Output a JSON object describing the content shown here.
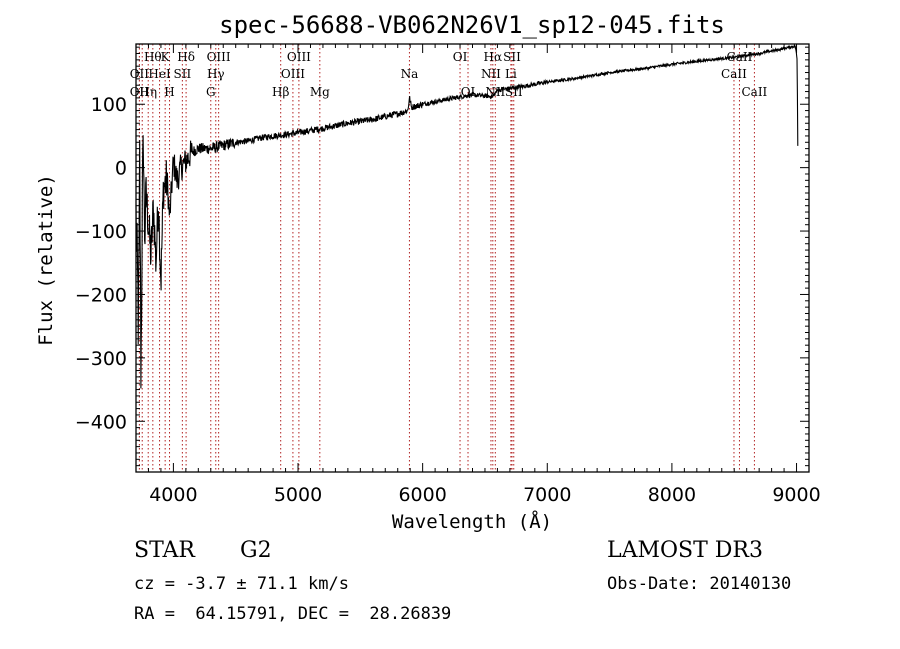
{
  "chart_data": {
    "type": "line",
    "title": "spec-56688-VB062N26V1_sp12-045.fits",
    "xlabel": "Wavelength (Å)",
    "ylabel": "Flux (relative)",
    "xlim": [
      3700,
      9100
    ],
    "ylim": [
      -480,
      195
    ],
    "xticks": [
      {
        "value": 4000,
        "label": "4000"
      },
      {
        "value": 5000,
        "label": "5000"
      },
      {
        "value": 6000,
        "label": "6000"
      },
      {
        "value": 7000,
        "label": "7000"
      },
      {
        "value": 8000,
        "label": "8000"
      },
      {
        "value": 9000,
        "label": "9000"
      }
    ],
    "yticks": [
      {
        "value": 100,
        "label": "100"
      },
      {
        "value": 0,
        "label": "0"
      },
      {
        "value": -100,
        "label": "−100"
      },
      {
        "value": -200,
        "label": "−200"
      },
      {
        "value": -300,
        "label": "−300"
      },
      {
        "value": -400,
        "label": "−400"
      }
    ],
    "spectrum_anchors": [
      {
        "x": 3700,
        "y": -80
      },
      {
        "x": 3720,
        "y": -250
      },
      {
        "x": 3730,
        "y": 10
      },
      {
        "x": 3740,
        "y": -340
      },
      {
        "x": 3750,
        "y": -60
      },
      {
        "x": 3760,
        "y": 30
      },
      {
        "x": 3770,
        "y": -120
      },
      {
        "x": 3780,
        "y": -40
      },
      {
        "x": 3800,
        "y": -90
      },
      {
        "x": 3820,
        "y": -140
      },
      {
        "x": 3840,
        "y": -60
      },
      {
        "x": 3860,
        "y": -150
      },
      {
        "x": 3880,
        "y": -50
      },
      {
        "x": 3900,
        "y": -180
      },
      {
        "x": 3920,
        "y": -30
      },
      {
        "x": 3950,
        "y": -20
      },
      {
        "x": 3970,
        "y": -80
      },
      {
        "x": 4000,
        "y": 10
      },
      {
        "x": 4030,
        "y": -20
      },
      {
        "x": 4060,
        "y": 0
      },
      {
        "x": 4100,
        "y": 10
      },
      {
        "x": 4150,
        "y": 25
      },
      {
        "x": 4200,
        "y": 30
      },
      {
        "x": 4300,
        "y": 30
      },
      {
        "x": 4400,
        "y": 35
      },
      {
        "x": 4500,
        "y": 40
      },
      {
        "x": 4600,
        "y": 42
      },
      {
        "x": 4700,
        "y": 47
      },
      {
        "x": 4800,
        "y": 50
      },
      {
        "x": 4900,
        "y": 52
      },
      {
        "x": 5000,
        "y": 55
      },
      {
        "x": 5200,
        "y": 62
      },
      {
        "x": 5400,
        "y": 70
      },
      {
        "x": 5600,
        "y": 76
      },
      {
        "x": 5800,
        "y": 85
      },
      {
        "x": 5880,
        "y": 90
      },
      {
        "x": 5895,
        "y": 110
      },
      {
        "x": 5910,
        "y": 95
      },
      {
        "x": 6000,
        "y": 100
      },
      {
        "x": 6200,
        "y": 108
      },
      {
        "x": 6400,
        "y": 115
      },
      {
        "x": 6563,
        "y": 112
      },
      {
        "x": 6600,
        "y": 122
      },
      {
        "x": 6800,
        "y": 128
      },
      {
        "x": 7000,
        "y": 135
      },
      {
        "x": 7200,
        "y": 140
      },
      {
        "x": 7500,
        "y": 150
      },
      {
        "x": 7800,
        "y": 157
      },
      {
        "x": 8000,
        "y": 163
      },
      {
        "x": 8300,
        "y": 170
      },
      {
        "x": 8500,
        "y": 174
      },
      {
        "x": 8700,
        "y": 180
      },
      {
        "x": 8900,
        "y": 188
      },
      {
        "x": 8990,
        "y": 192
      },
      {
        "x": 9005,
        "y": 170
      },
      {
        "x": 9010,
        "y": 35
      }
    ],
    "reference_lines": [
      {
        "wavelength": 3727,
        "labels": [
          {
            "text": "OII",
            "row": 2
          },
          {
            "text": "OII",
            "row": 3
          }
        ]
      },
      {
        "wavelength": 3750,
        "labels": []
      },
      {
        "wavelength": 3798,
        "labels": [
          {
            "text": "Hη",
            "row": 3
          }
        ]
      },
      {
        "wavelength": 3835,
        "labels": [
          {
            "text": "Hθ",
            "row": 1
          }
        ]
      },
      {
        "wavelength": 3889,
        "labels": [
          {
            "text": "HeI",
            "row": 2
          }
        ]
      },
      {
        "wavelength": 3934,
        "labels": [
          {
            "text": "K",
            "row": 1
          }
        ]
      },
      {
        "wavelength": 3969,
        "labels": [
          {
            "text": "H",
            "row": 3
          }
        ]
      },
      {
        "wavelength": 4072,
        "labels": [
          {
            "text": "SII",
            "row": 2
          }
        ]
      },
      {
        "wavelength": 4102,
        "labels": [
          {
            "text": "Hδ",
            "row": 1
          }
        ]
      },
      {
        "wavelength": 4300,
        "labels": [
          {
            "text": "G",
            "row": 3
          }
        ]
      },
      {
        "wavelength": 4340,
        "labels": [
          {
            "text": "Hγ",
            "row": 2
          }
        ]
      },
      {
        "wavelength": 4363,
        "labels": [
          {
            "text": "OIII",
            "row": 1
          }
        ]
      },
      {
        "wavelength": 4861,
        "labels": [
          {
            "text": "Hβ",
            "row": 3
          }
        ]
      },
      {
        "wavelength": 4959,
        "labels": [
          {
            "text": "OIII",
            "row": 2
          }
        ]
      },
      {
        "wavelength": 5007,
        "labels": [
          {
            "text": "OIII",
            "row": 1
          }
        ]
      },
      {
        "wavelength": 5175,
        "labels": [
          {
            "text": "Mg",
            "row": 3
          }
        ]
      },
      {
        "wavelength": 5894,
        "labels": [
          {
            "text": "Na",
            "row": 2
          }
        ]
      },
      {
        "wavelength": 6300,
        "labels": [
          {
            "text": "OI",
            "row": 1
          }
        ]
      },
      {
        "wavelength": 6364,
        "labels": [
          {
            "text": "OI",
            "row": 3
          }
        ]
      },
      {
        "wavelength": 6548,
        "labels": [
          {
            "text": "NII",
            "row": 2
          }
        ]
      },
      {
        "wavelength": 6563,
        "labels": [
          {
            "text": "Hα",
            "row": 1
          }
        ]
      },
      {
        "wavelength": 6583,
        "labels": [
          {
            "text": "NII",
            "row": 3
          }
        ]
      },
      {
        "wavelength": 6708,
        "labels": [
          {
            "text": "Li",
            "row": 2
          }
        ]
      },
      {
        "wavelength": 6717,
        "labels": [
          {
            "text": "SII",
            "row": 1
          }
        ]
      },
      {
        "wavelength": 6731,
        "labels": [
          {
            "text": "SII",
            "row": 3
          }
        ]
      },
      {
        "wavelength": 8498,
        "labels": [
          {
            "text": "CaII",
            "row": 2
          }
        ]
      },
      {
        "wavelength": 8542,
        "labels": [
          {
            "text": "CaII",
            "row": 1
          }
        ]
      },
      {
        "wavelength": 8662,
        "labels": [
          {
            "text": "CaII",
            "row": 3
          }
        ]
      }
    ]
  },
  "info": {
    "object_class": "STAR",
    "subclass": "G2",
    "redshift": "cz = -3.7 ± 71.1 km/s",
    "coordinates": "RA =  64.15791, DEC =  28.26839",
    "survey": "LAMOST DR3",
    "obs_date": "Obs-Date: 20140130"
  },
  "colors": {
    "spectrum": "#000000",
    "reference_line": "#b22222",
    "background": "#ffffff"
  }
}
